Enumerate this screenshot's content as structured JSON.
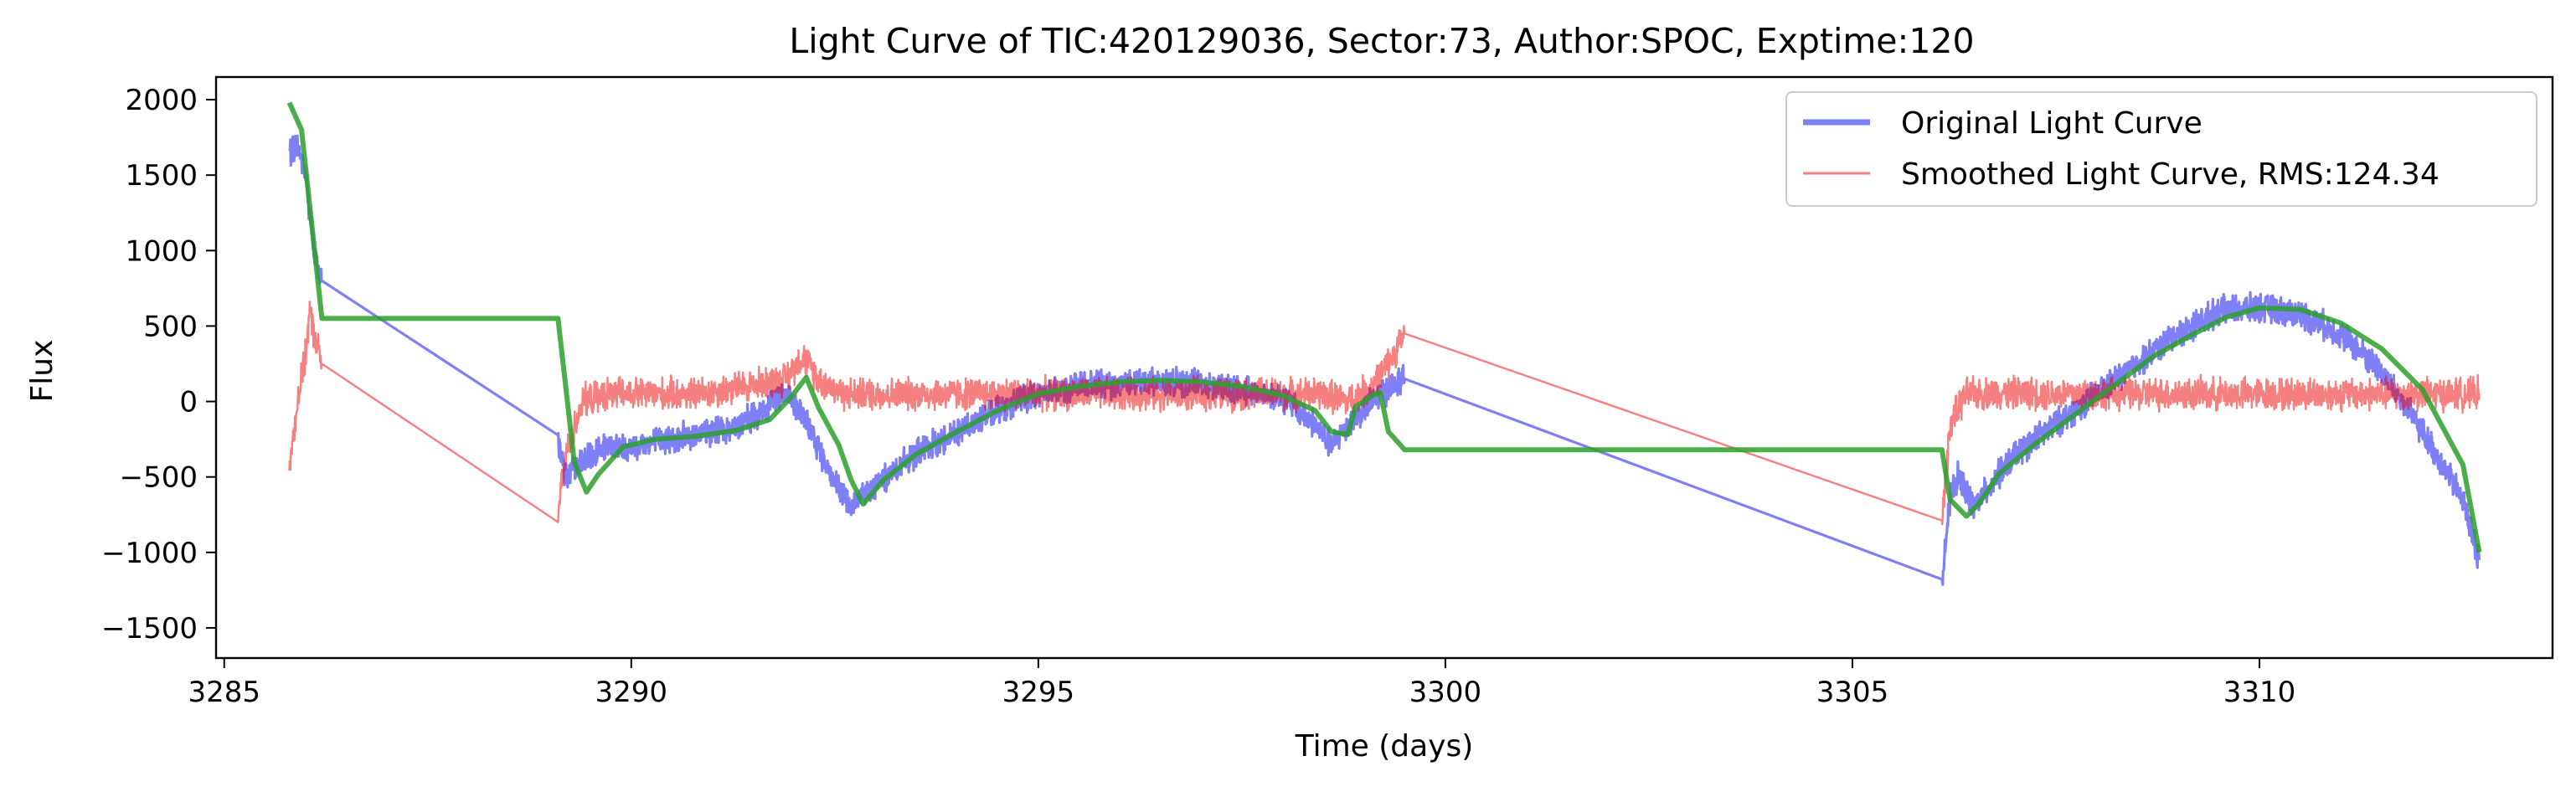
{
  "chart_data": {
    "type": "line",
    "title": "Light Curve of TIC:420129036, Sector:73, Author:SPOC, Exptime:120",
    "xlabel": "Time (days)",
    "ylabel": "Flux",
    "xlim": [
      3284.9,
      3313.6
    ],
    "ylim": [
      -1700,
      2150
    ],
    "xticks": [
      3285,
      3290,
      3295,
      3300,
      3305,
      3310
    ],
    "yticks": [
      2000,
      1500,
      1000,
      500,
      0,
      -500,
      -1000,
      -1500
    ],
    "ytick_labels": [
      "2000",
      "1500",
      "1000",
      "500",
      "0",
      "−500",
      "−1000",
      "−1500"
    ],
    "grid": false,
    "legend_position": "top-right",
    "colors": {
      "original": "#0000ee",
      "smoothed": "#ee0000",
      "trend": "#2ca02c"
    },
    "series": [
      {
        "name": "Original Light Curve",
        "style": "band",
        "x": [
          3285.8,
          3285.9,
          3286.0,
          3286.1,
          3286.2,
          3289.1,
          3289.2,
          3289.3,
          3289.4,
          3289.5,
          3289.6,
          3289.8,
          3290.0,
          3290.4,
          3290.8,
          3291.2,
          3291.6,
          3291.9,
          3292.1,
          3292.3,
          3292.5,
          3292.7,
          3293.0,
          3293.5,
          3294.0,
          3294.5,
          3295.0,
          3295.5,
          3296.0,
          3296.5,
          3297.0,
          3297.5,
          3298.0,
          3298.4,
          3298.6,
          3298.8,
          3299.0,
          3299.2,
          3299.5,
          3306.1,
          3306.2,
          3306.3,
          3306.5,
          3306.7,
          3307.0,
          3307.5,
          3308.0,
          3308.5,
          3309.0,
          3309.5,
          3310.0,
          3310.5,
          3311.0,
          3311.5,
          3312.0,
          3312.5,
          3312.7
        ],
        "values": [
          1650,
          1700,
          1500,
          1000,
          800,
          -250,
          -500,
          -450,
          -400,
          -380,
          -320,
          -300,
          -300,
          -250,
          -220,
          -180,
          -80,
          80,
          -100,
          -300,
          -550,
          -700,
          -550,
          -350,
          -200,
          -50,
          50,
          100,
          120,
          130,
          120,
          80,
          30,
          -150,
          -300,
          -150,
          -50,
          50,
          150,
          -1150,
          -650,
          -500,
          -700,
          -550,
          -350,
          -150,
          50,
          250,
          450,
          600,
          620,
          580,
          450,
          200,
          -200,
          -650,
          -1050
        ],
        "band_width": 140
      },
      {
        "name": "Smoothed Light Curve, RMS:124.34",
        "style": "band",
        "x": [
          3285.8,
          3285.9,
          3286.0,
          3286.05,
          3286.1,
          3286.2,
          3289.1,
          3289.2,
          3289.4,
          3289.7,
          3290.2,
          3290.8,
          3291.4,
          3291.9,
          3292.1,
          3292.3,
          3292.6,
          3293.0,
          3294.0,
          3295.0,
          3296.0,
          3297.0,
          3298.0,
          3298.5,
          3298.8,
          3299.1,
          3299.3,
          3299.5,
          3306.1,
          3306.2,
          3306.4,
          3306.8,
          3307.5,
          3308.5,
          3309.5,
          3310.5,
          3311.5,
          3312.0,
          3312.5,
          3312.7
        ],
        "values": [
          -450,
          0,
          300,
          600,
          450,
          250,
          -750,
          -350,
          0,
          50,
          50,
          50,
          100,
          150,
          300,
          150,
          50,
          50,
          50,
          50,
          50,
          50,
          50,
          50,
          0,
          100,
          250,
          450,
          -800,
          -150,
          50,
          60,
          50,
          50,
          50,
          50,
          50,
          50,
          50,
          50
        ],
        "band_width": 160
      },
      {
        "name": "",
        "style": "line",
        "x": [
          3285.8,
          3285.95,
          3286.2,
          3289.1,
          3289.3,
          3289.45,
          3289.6,
          3289.9,
          3290.3,
          3290.8,
          3291.3,
          3291.7,
          3291.95,
          3292.15,
          3292.3,
          3292.55,
          3292.7,
          3292.85,
          3293.1,
          3293.5,
          3294.0,
          3294.5,
          3295.0,
          3295.5,
          3296.0,
          3296.5,
          3297.0,
          3297.5,
          3298.0,
          3298.4,
          3298.6,
          3298.8,
          3298.9,
          3299.0,
          3299.1,
          3299.2,
          3299.3,
          3299.5,
          3306.1,
          3306.2,
          3306.4,
          3306.55,
          3306.8,
          3307.2,
          3307.7,
          3308.2,
          3308.7,
          3309.2,
          3309.6,
          3310.0,
          3310.5,
          3311.0,
          3311.5,
          3312.0,
          3312.5,
          3312.7
        ],
        "values": [
          1980,
          1800,
          550,
          550,
          -400,
          -600,
          -480,
          -300,
          -250,
          -230,
          -190,
          -120,
          20,
          160,
          -40,
          -290,
          -520,
          -680,
          -520,
          -350,
          -200,
          -60,
          50,
          100,
          130,
          140,
          130,
          100,
          40,
          -60,
          -200,
          -220,
          -30,
          0,
          40,
          60,
          -200,
          -320,
          -320,
          -650,
          -760,
          -680,
          -480,
          -300,
          -100,
          100,
          300,
          450,
          560,
          620,
          610,
          520,
          350,
          80,
          -420,
          -1000
        ]
      }
    ]
  }
}
